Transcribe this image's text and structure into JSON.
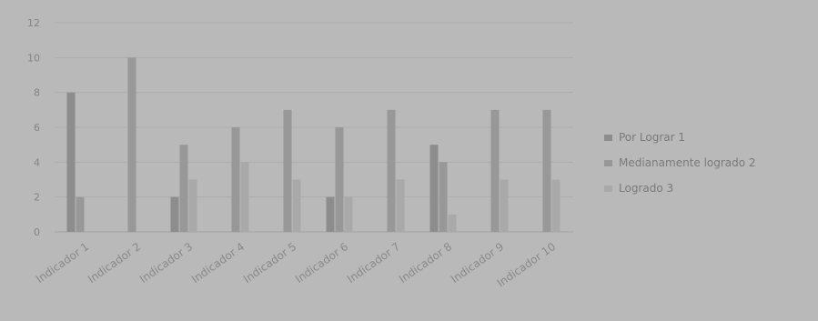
{
  "chart_data": {
    "type": "bar",
    "title": "",
    "xlabel": "",
    "ylabel": "",
    "ylim": [
      0,
      12
    ],
    "yticks": [
      0,
      2,
      4,
      6,
      8,
      10,
      12
    ],
    "grid": true,
    "legend_position": "right",
    "categories": [
      "Indicador 1",
      "Indicador 2",
      "Indicador 3",
      "Indicador 4",
      "Indicador 5",
      "Indicador 6",
      "Indicador 7",
      "Indicador 8",
      "Indicador 9",
      "Indicador 10"
    ],
    "series": [
      {
        "name": "Por Lograr 1",
        "color": "#8d8d8d",
        "values": [
          8,
          0,
          2,
          0,
          0,
          2,
          0,
          5,
          0,
          0
        ]
      },
      {
        "name": "Medianamente logrado 2",
        "color": "#989898",
        "values": [
          2,
          10,
          5,
          6,
          7,
          6,
          7,
          4,
          7,
          7
        ]
      },
      {
        "name": "Logrado 3",
        "color": "#a9a9a9",
        "values": [
          0,
          0,
          3,
          4,
          3,
          2,
          3,
          1,
          3,
          3
        ]
      }
    ]
  }
}
